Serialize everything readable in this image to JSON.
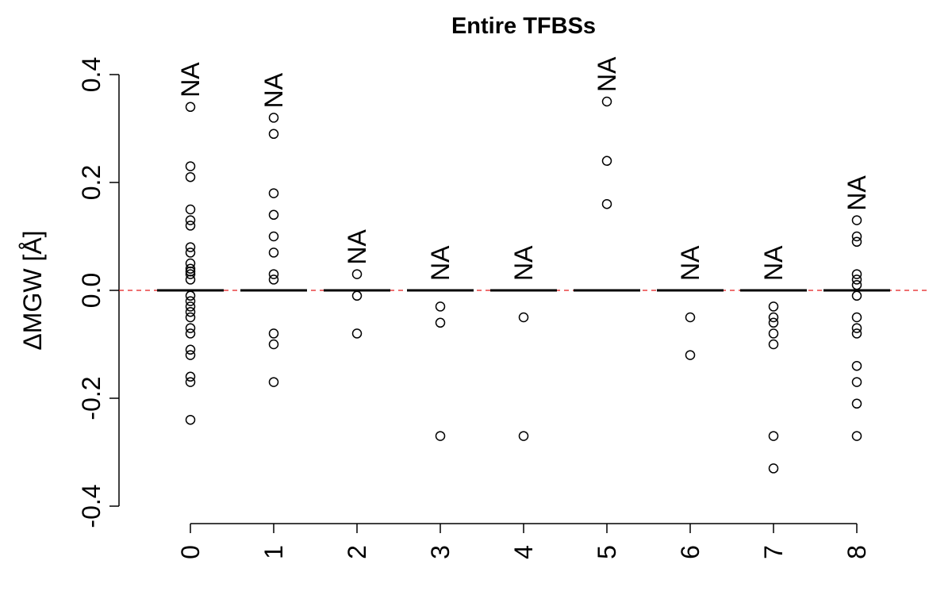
{
  "chart_data": {
    "type": "box",
    "title": "Entire TFBSs",
    "xlabel": "",
    "ylabel": "ΔMGW [Å]",
    "ylim": [
      -0.4,
      0.4
    ],
    "y_ticks": [
      -0.4,
      -0.2,
      0.0,
      0.2,
      0.4
    ],
    "y_tick_labels": [
      "-0.4",
      "-0.2",
      "0.0",
      "0.2",
      "0.4"
    ],
    "categories": [
      "0",
      "1",
      "2",
      "3",
      "4",
      "5",
      "6",
      "7",
      "8"
    ],
    "reference_line": {
      "y": 0.0,
      "style": "dashed",
      "color": "#e41a1c"
    },
    "grid": false,
    "boxes": [
      {
        "category": "0",
        "median": 0.0,
        "q1": 0.0,
        "q3": 0.0,
        "na_label": "NA",
        "outliers": [
          0.34,
          0.23,
          0.21,
          0.15,
          0.13,
          0.12,
          0.08,
          0.07,
          0.05,
          0.04,
          0.035,
          0.03,
          0.02,
          -0.01,
          -0.02,
          -0.03,
          -0.04,
          -0.05,
          -0.07,
          -0.08,
          -0.11,
          -0.12,
          -0.16,
          -0.17,
          -0.24
        ]
      },
      {
        "category": "1",
        "median": 0.0,
        "q1": 0.0,
        "q3": 0.0,
        "na_label": "NA",
        "outliers": [
          0.32,
          0.29,
          0.18,
          0.14,
          0.1,
          0.07,
          0.03,
          0.02,
          -0.08,
          -0.1,
          -0.17
        ]
      },
      {
        "category": "2",
        "median": 0.0,
        "q1": 0.0,
        "q3": 0.0,
        "na_label": "NA",
        "outliers": [
          0.03,
          -0.01,
          -0.08
        ]
      },
      {
        "category": "3",
        "median": 0.0,
        "q1": 0.0,
        "q3": 0.0,
        "na_label": "NA",
        "outliers": [
          -0.03,
          -0.06,
          -0.27
        ]
      },
      {
        "category": "4",
        "median": 0.0,
        "q1": 0.0,
        "q3": 0.0,
        "na_label": "NA",
        "outliers": [
          -0.05,
          -0.27
        ]
      },
      {
        "category": "5",
        "median": 0.0,
        "q1": 0.0,
        "q3": 0.0,
        "na_label": "NA",
        "outliers": [
          0.35,
          0.24,
          0.16
        ]
      },
      {
        "category": "6",
        "median": 0.0,
        "q1": 0.0,
        "q3": 0.0,
        "na_label": "NA",
        "outliers": [
          -0.05,
          -0.12
        ]
      },
      {
        "category": "7",
        "median": 0.0,
        "q1": 0.0,
        "q3": 0.0,
        "na_label": "NA",
        "outliers": [
          -0.03,
          -0.05,
          -0.06,
          -0.08,
          -0.1,
          -0.27,
          -0.33
        ]
      },
      {
        "category": "8",
        "median": 0.0,
        "q1": 0.0,
        "q3": 0.0,
        "na_label": "NA",
        "outliers": [
          0.13,
          0.1,
          0.09,
          0.03,
          0.02,
          0.01,
          -0.01,
          -0.05,
          -0.07,
          -0.08,
          -0.14,
          -0.17,
          -0.21,
          -0.27
        ]
      }
    ]
  }
}
